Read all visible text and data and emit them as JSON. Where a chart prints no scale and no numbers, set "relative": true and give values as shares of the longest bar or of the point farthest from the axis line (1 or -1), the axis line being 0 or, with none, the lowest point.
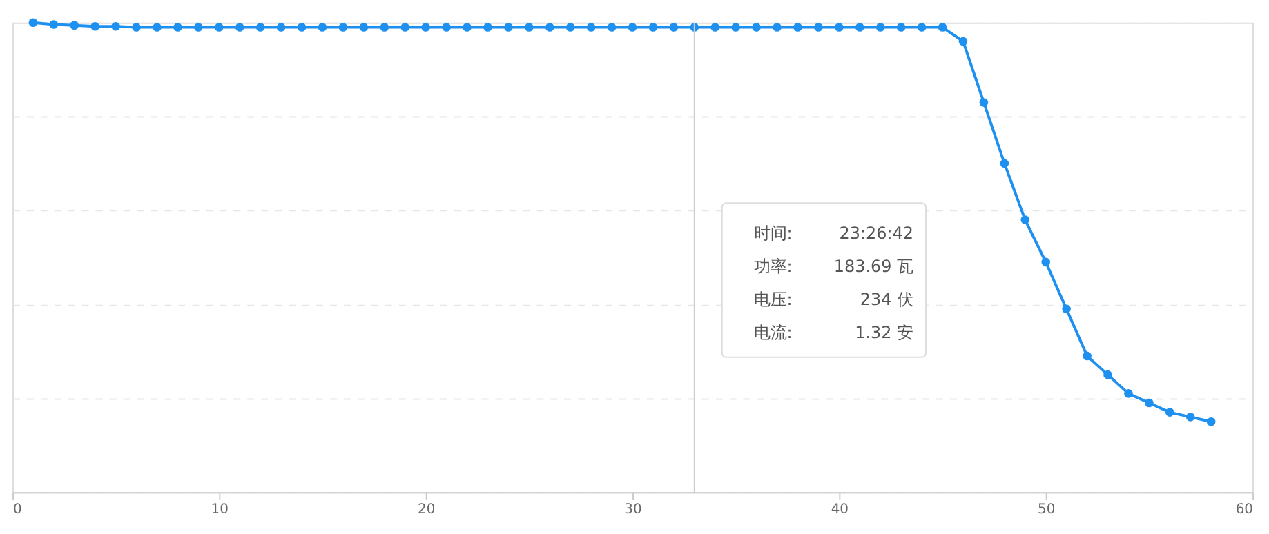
{
  "chart_data": {
    "type": "line",
    "relative": true,
    "x": [
      1,
      2,
      3,
      4,
      5,
      6,
      7,
      8,
      9,
      10,
      11,
      12,
      13,
      14,
      15,
      16,
      17,
      18,
      19,
      20,
      21,
      22,
      23,
      24,
      25,
      26,
      27,
      28,
      29,
      30,
      31,
      32,
      33,
      34,
      35,
      36,
      37,
      38,
      39,
      40,
      41,
      42,
      43,
      44,
      45,
      46,
      47,
      48,
      49,
      50,
      51,
      52,
      53,
      54,
      55,
      56,
      57,
      58
    ],
    "series": [
      {
        "color": "#1e90f0",
        "values": [
          1,
          0.996,
          0.994,
          0.992,
          0.992,
          0.99,
          0.99,
          0.99,
          0.99,
          0.99,
          0.99,
          0.99,
          0.99,
          0.99,
          0.99,
          0.99,
          0.99,
          0.99,
          0.99,
          0.99,
          0.99,
          0.99,
          0.99,
          0.99,
          0.99,
          0.99,
          0.99,
          0.99,
          0.99,
          0.99,
          0.99,
          0.99,
          0.99,
          0.99,
          0.99,
          0.99,
          0.99,
          0.99,
          0.99,
          0.99,
          0.99,
          0.99,
          0.99,
          0.99,
          0.99,
          0.96,
          0.83,
          0.7,
          0.58,
          0.49,
          0.39,
          0.29,
          0.25,
          0.21,
          0.19,
          0.17,
          0.16,
          0.15
        ]
      }
    ],
    "xlim": [
      0,
      60
    ],
    "xticks": [
      0,
      10,
      20,
      30,
      40,
      50,
      60
    ],
    "grid": "y",
    "marker": "circle",
    "line_style": "solid",
    "ref_lines": [
      {
        "axis": "x",
        "value": 33,
        "color": "#cccccc"
      }
    ],
    "annotations": [
      "时间:",
      "23:26:42",
      "功率:",
      "183.69 瓦",
      "电压:",
      "234 伏",
      "电流:",
      "1.32 安"
    ]
  }
}
